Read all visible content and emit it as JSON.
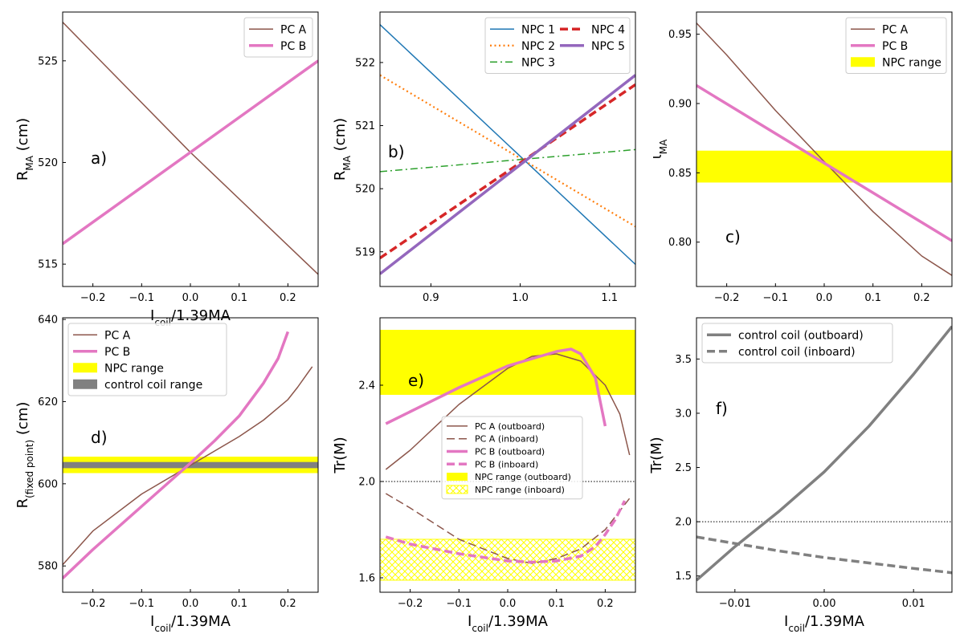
{
  "figure": {
    "width": 1200,
    "height": 800
  },
  "colors": {
    "pc_a": "#8c564b",
    "pc_b": "#e377c2",
    "npc1": "#1f77b4",
    "npc2": "#ff7f0e",
    "npc3": "#2ca02c",
    "npc4": "#d62728",
    "npc5": "#9467bd",
    "npc_range": "#ffff00",
    "coil": "#808080"
  },
  "chart_data": [
    {
      "id": "a",
      "type": "line",
      "panel_label": "a)",
      "xlabel": {
        "base": "I",
        "sub": "coil",
        "tail": "/1.39MA"
      },
      "ylabel": {
        "base": "R",
        "sub": "MA",
        "tail": " (cm)"
      },
      "xlim": [
        -0.262,
        0.262
      ],
      "ylim": [
        513.9,
        527.4
      ],
      "xticks": [
        -0.2,
        -0.1,
        0.0,
        0.1,
        0.2
      ],
      "xticklabels": [
        "−0.2",
        "−0.1",
        "0.0",
        "0.1",
        "0.2"
      ],
      "yticks": [
        515,
        520,
        525
      ],
      "yticklabels": [
        "515",
        "520",
        "525"
      ],
      "legend_position": "upper-right",
      "series": [
        {
          "name": "PC A",
          "color": "#8c564b",
          "width": 1.5,
          "dash": "solid",
          "x": [
            -0.262,
            0.0,
            0.262
          ],
          "y": [
            526.9,
            520.5,
            514.5
          ]
        },
        {
          "name": "PC B",
          "color": "#e377c2",
          "width": 3.5,
          "dash": "solid",
          "x": [
            -0.262,
            0.0,
            0.262
          ],
          "y": [
            516.0,
            520.5,
            525.0
          ]
        }
      ],
      "bands": []
    },
    {
      "id": "b",
      "type": "line",
      "panel_label": "b)",
      "xlabel": {
        "base": "",
        "sub": "",
        "tail": ""
      },
      "ylabel": {
        "base": "R",
        "sub": "MA",
        "tail": " (cm)"
      },
      "xlim": [
        0.843,
        1.129
      ],
      "ylim": [
        518.45,
        522.8
      ],
      "xticks": [
        0.9,
        1.0,
        1.1
      ],
      "xticklabels": [
        "0.9",
        "1.0",
        "1.1"
      ],
      "yticks": [
        519,
        520,
        521,
        522
      ],
      "yticklabels": [
        "519",
        "520",
        "521",
        "522"
      ],
      "legend_position": "upper-right",
      "legend_columns": 2,
      "series": [
        {
          "name": "NPC 1",
          "color": "#1f77b4",
          "width": 1.5,
          "dash": "solid",
          "x": [
            0.843,
            1.129
          ],
          "y": [
            522.6,
            518.8
          ]
        },
        {
          "name": "NPC 2",
          "color": "#ff7f0e",
          "width": 2.2,
          "dash": "dotted",
          "x": [
            0.843,
            1.129
          ],
          "y": [
            521.8,
            519.4
          ]
        },
        {
          "name": "NPC 3",
          "color": "#2ca02c",
          "width": 1.5,
          "dash": "dashdot",
          "x": [
            0.843,
            1.129
          ],
          "y": [
            520.27,
            520.62
          ]
        },
        {
          "name": "NPC 4",
          "color": "#d62728",
          "width": 3.5,
          "dash": "dashed",
          "x": [
            0.843,
            1.129
          ],
          "y": [
            518.9,
            521.65
          ]
        },
        {
          "name": "NPC 5",
          "color": "#9467bd",
          "width": 3.5,
          "dash": "solid",
          "x": [
            0.843,
            1.129
          ],
          "y": [
            518.65,
            521.8
          ]
        }
      ],
      "bands": []
    },
    {
      "id": "c",
      "type": "line",
      "panel_label": "c)",
      "xlabel": {
        "base": "",
        "sub": "",
        "tail": ""
      },
      "ylabel": {
        "base": "ι",
        "sub": "MA",
        "tail": ""
      },
      "xlim": [
        -0.262,
        0.262
      ],
      "ylim": [
        0.768,
        0.966
      ],
      "xticks": [
        -0.2,
        -0.1,
        0.0,
        0.1,
        0.2
      ],
      "xticklabels": [
        "−0.2",
        "−0.1",
        "0.0",
        "0.1",
        "0.2"
      ],
      "yticks": [
        0.8,
        0.85,
        0.9,
        0.95
      ],
      "yticklabels": [
        "0.80",
        "0.85",
        "0.90",
        "0.95"
      ],
      "legend_position": "upper-right",
      "series": [
        {
          "name": "PC A",
          "color": "#8c564b",
          "width": 1.5,
          "dash": "solid",
          "x": [
            -0.262,
            -0.2,
            -0.1,
            0.0,
            0.1,
            0.2,
            0.262
          ],
          "y": [
            0.958,
            0.935,
            0.895,
            0.858,
            0.822,
            0.79,
            0.776
          ]
        },
        {
          "name": "PC B",
          "color": "#e377c2",
          "width": 3.5,
          "dash": "solid",
          "x": [
            -0.262,
            0.0,
            0.262
          ],
          "y": [
            0.913,
            0.857,
            0.801
          ]
        }
      ],
      "bands": [
        {
          "name": "NPC range",
          "color": "#ffff00",
          "y0": 0.843,
          "y1": 0.866,
          "pattern": "solid"
        }
      ]
    },
    {
      "id": "d",
      "type": "line",
      "panel_label": "d)",
      "xlabel": {
        "base": "I",
        "sub": "coil",
        "tail": "/1.39MA"
      },
      "ylabel": {
        "base": "R",
        "sub": "(fixed point)",
        "tail": " (cm)"
      },
      "xlim": [
        -0.262,
        0.262
      ],
      "ylim": [
        573.6,
        640.4
      ],
      "xticks": [
        -0.2,
        -0.1,
        0.0,
        0.1,
        0.2
      ],
      "xticklabels": [
        "−0.2",
        "−0.1",
        "0.0",
        "0.1",
        "0.2"
      ],
      "yticks": [
        580,
        600,
        620,
        640
      ],
      "yticklabels": [
        "580",
        "600",
        "620",
        "640"
      ],
      "legend_position": "upper-left",
      "series": [
        {
          "name": "PC A",
          "color": "#8c564b",
          "width": 1.5,
          "dash": "solid",
          "x": [
            -0.262,
            -0.2,
            -0.1,
            0.0,
            0.1,
            0.15,
            0.2,
            0.22,
            0.25
          ],
          "y": [
            580.3,
            588.5,
            597.5,
            604.5,
            611.5,
            615.5,
            620.5,
            623.5,
            628.5
          ]
        },
        {
          "name": "PC B",
          "color": "#e377c2",
          "width": 3.5,
          "dash": "solid",
          "x": [
            -0.262,
            -0.2,
            -0.1,
            0.0,
            0.05,
            0.1,
            0.15,
            0.18,
            0.2
          ],
          "y": [
            577.0,
            584.0,
            594.5,
            605.0,
            610.5,
            616.5,
            624.5,
            630.5,
            637.0
          ]
        }
      ],
      "bands": [
        {
          "name": "NPC range",
          "color": "#ffff00",
          "y0": 602.6,
          "y1": 606.6,
          "pattern": "solid"
        },
        {
          "name": "control coil range",
          "color": "#808080",
          "y0": 603.8,
          "y1": 605.3,
          "pattern": "solid"
        }
      ]
    },
    {
      "id": "e",
      "type": "line",
      "panel_label": "e)",
      "xlabel": {
        "base": "I",
        "sub": "coil",
        "tail": "/1.39MA"
      },
      "ylabel": {
        "base": "Tr(M)",
        "sub": "",
        "tail": ""
      },
      "xlim": [
        -0.262,
        0.262
      ],
      "ylim": [
        1.54,
        2.68
      ],
      "xticks": [
        -0.2,
        -0.1,
        0.0,
        0.1,
        0.2
      ],
      "xticklabels": [
        "−0.2",
        "−0.1",
        "0.0",
        "0.1",
        "0.2"
      ],
      "yticks": [
        1.6,
        2.0,
        2.4
      ],
      "yticklabels": [
        "1.6",
        "2.0",
        "2.4"
      ],
      "hline": 2.0,
      "legend_position": "center",
      "legend_small": true,
      "series": [
        {
          "name": "PC A (outboard)",
          "color": "#8c564b",
          "width": 1.5,
          "dash": "solid",
          "x": [
            -0.25,
            -0.2,
            -0.1,
            0.0,
            0.05,
            0.1,
            0.15,
            0.2,
            0.23,
            0.25
          ],
          "y": [
            2.05,
            2.13,
            2.32,
            2.47,
            2.52,
            2.53,
            2.5,
            2.4,
            2.28,
            2.11
          ]
        },
        {
          "name": "PC A (inboard)",
          "color": "#8c564b",
          "width": 1.5,
          "dash": "dashed",
          "x": [
            -0.25,
            -0.2,
            -0.1,
            0.0,
            0.05,
            0.1,
            0.15,
            0.2,
            0.25
          ],
          "y": [
            1.95,
            1.89,
            1.76,
            1.68,
            1.66,
            1.68,
            1.72,
            1.8,
            1.93
          ]
        },
        {
          "name": "PC B (outboard)",
          "color": "#e377c2",
          "width": 3.5,
          "dash": "solid",
          "x": [
            -0.25,
            -0.2,
            -0.1,
            0.0,
            0.1,
            0.13,
            0.15,
            0.18,
            0.2
          ],
          "y": [
            2.24,
            2.29,
            2.39,
            2.48,
            2.54,
            2.55,
            2.53,
            2.43,
            2.23
          ]
        },
        {
          "name": "PC B (inboard)",
          "color": "#e377c2",
          "width": 3.5,
          "dash": "dashed",
          "x": [
            -0.25,
            -0.2,
            -0.1,
            0.0,
            0.05,
            0.1,
            0.15,
            0.18,
            0.2,
            0.22,
            0.24
          ],
          "y": [
            1.77,
            1.74,
            1.7,
            1.67,
            1.665,
            1.67,
            1.69,
            1.73,
            1.78,
            1.84,
            1.92
          ]
        }
      ],
      "bands": [
        {
          "name": "NPC range (outboard)",
          "color": "#ffff00",
          "y0": 2.36,
          "y1": 2.63,
          "pattern": "solid"
        },
        {
          "name": "NPC range (inboard)",
          "color": "#ffff00",
          "y0": 1.59,
          "y1": 1.76,
          "pattern": "hatch"
        }
      ]
    },
    {
      "id": "f",
      "type": "line",
      "panel_label": "f)",
      "xlabel": {
        "base": "I",
        "sub": "coil",
        "tail": "/1.39MA"
      },
      "ylabel": {
        "base": "Tr(M)",
        "sub": "",
        "tail": ""
      },
      "xlim": [
        -0.0143,
        0.0143
      ],
      "ylim": [
        1.35,
        3.88
      ],
      "xticks": [
        -0.01,
        0.0,
        0.01
      ],
      "xticklabels": [
        "−0.01",
        "0.00",
        "0.01"
      ],
      "yticks": [
        1.5,
        2.0,
        2.5,
        3.0,
        3.5
      ],
      "yticklabels": [
        "1.5",
        "2.0",
        "2.5",
        "3.0",
        "3.5"
      ],
      "hline": 2.0,
      "legend_position": "upper-left",
      "series": [
        {
          "name": "control coil (outboard)",
          "color": "#808080",
          "width": 3.5,
          "dash": "solid",
          "x": [
            -0.0143,
            -0.01,
            -0.005,
            0.0,
            0.005,
            0.01,
            0.0143
          ],
          "y": [
            1.46,
            1.77,
            2.1,
            2.46,
            2.88,
            3.36,
            3.8
          ]
        },
        {
          "name": "control coil (inboard)",
          "color": "#808080",
          "width": 3.5,
          "dash": "dashed",
          "x": [
            -0.0143,
            -0.01,
            -0.005,
            0.0,
            0.005,
            0.01,
            0.0143
          ],
          "y": [
            1.86,
            1.8,
            1.73,
            1.67,
            1.62,
            1.57,
            1.53
          ]
        }
      ],
      "bands": []
    }
  ]
}
